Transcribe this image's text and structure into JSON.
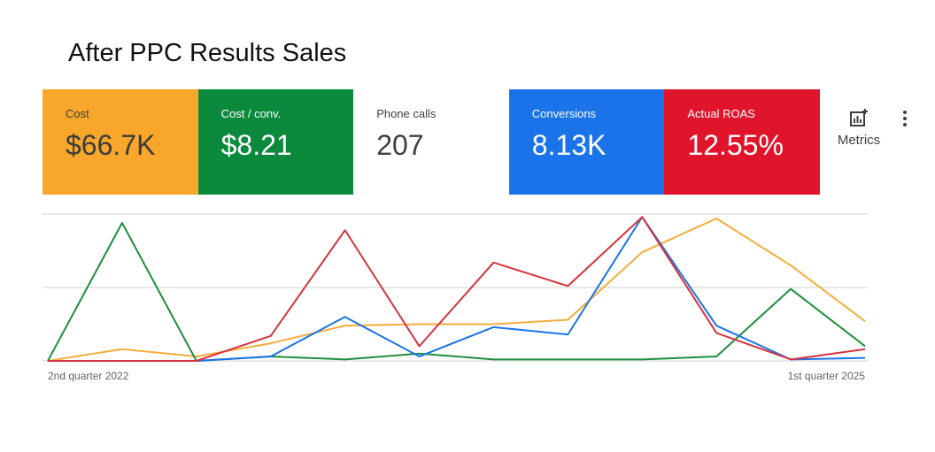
{
  "header": {
    "title": "After PPC Results Sales"
  },
  "scorecards": [
    {
      "label": "Cost",
      "value": "$66.7K",
      "color": "#f9a72b",
      "text_color": "#3c3c3c"
    },
    {
      "label": "Cost / conv.",
      "value": "$8.21",
      "color": "#0b8a3e",
      "text_color": "#ffffff"
    },
    {
      "label": "Phone calls",
      "value": "207",
      "color": "#ffffff",
      "text_color": "#3c4043"
    },
    {
      "label": "Conversions",
      "value": "8.13K",
      "color": "#1a73e8",
      "text_color": "#ffffff"
    },
    {
      "label": "Actual ROAS",
      "value": "12.55%",
      "color": "#e0152c",
      "text_color": "#ffffff"
    }
  ],
  "toolbar": {
    "metrics": "Metrics"
  },
  "chart_data": {
    "type": "line",
    "categories": [
      "2nd quarter 2022",
      null,
      null,
      null,
      null,
      null,
      null,
      null,
      null,
      null,
      null,
      "1st quarter 2025"
    ],
    "series": [
      {
        "color": "#f4ad3d",
        "values": [
          0,
          8,
          3,
          12,
          24,
          25,
          25,
          28,
          74,
          97,
          65,
          27
        ]
      },
      {
        "color": "#1e8e3e",
        "values": [
          0,
          94,
          0,
          3,
          1,
          5,
          1,
          1,
          1,
          3,
          49,
          10
        ]
      },
      {
        "color": "#1a73e8",
        "values": [
          0,
          0,
          0,
          3,
          30,
          3,
          23,
          18,
          98,
          24,
          1,
          2
        ]
      },
      {
        "color": "#d3343c",
        "values": [
          0,
          0,
          0,
          17,
          89,
          10,
          67,
          51,
          98,
          19,
          1,
          8
        ]
      }
    ],
    "ylim": [
      0,
      100
    ],
    "yticks": [
      0,
      50,
      100
    ],
    "grid": true
  }
}
